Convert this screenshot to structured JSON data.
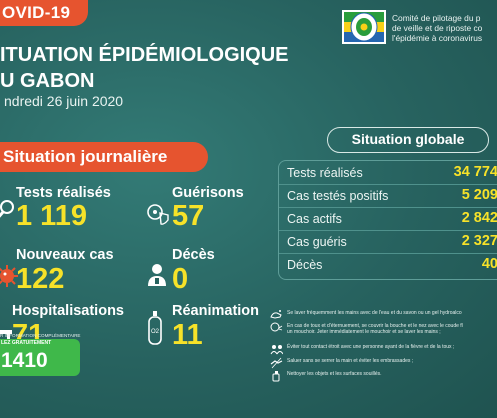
{
  "badge": "OVID-19",
  "title": {
    "line1": "ITUATION ÉPIDÉMIOLOGIQUE",
    "line2": "U GABON",
    "date": "ndredi 26 juin 2020"
  },
  "comite": {
    "line1": "Comité de pilotage du p",
    "line2": "de veille et de riposte co",
    "line3": "l'épidémie à coronavirus"
  },
  "daily": {
    "header": "Situation journalière",
    "stats": [
      {
        "label": "Tests réalisés",
        "value": "1 119",
        "icon": "magnifier-icon"
      },
      {
        "label": "Guérisons",
        "value": "57",
        "icon": "virus-shield-icon"
      },
      {
        "label": "Nouveaux cas",
        "value": "122",
        "icon": "virus-icon"
      },
      {
        "label": "Décès",
        "value": "0",
        "icon": "person-icon"
      },
      {
        "label": "Hospitalisations",
        "value": "71",
        "icon": "hospital-bed-icon"
      },
      {
        "label": "Réanimation",
        "value": "11",
        "icon": "oxygen-tank-icon"
      }
    ]
  },
  "global": {
    "header": "Situation globale",
    "rows": [
      {
        "label": "Tests réalisés",
        "value": "34 774"
      },
      {
        "label": "Cas testés positifs",
        "value": "5 209"
      },
      {
        "label": "Cas actifs",
        "value": "2 842"
      },
      {
        "label": "Cas guéris",
        "value": "2 327"
      },
      {
        "label": "Décès",
        "value": "40"
      }
    ]
  },
  "hotline": {
    "info": "R INFORMATION COMPLÉMENTAIRE",
    "free": "LEZ GRATUITEMENT",
    "number": "1410"
  },
  "advice": [
    {
      "icon": "hand-wash-icon",
      "lines": [
        "Se laver fréquemment les mains avec de l'eau et du savon ou un gel hydroalco"
      ]
    },
    {
      "icon": "cough-icon",
      "lines": [
        "En cas de toux et d'éternuement, se couvrir la bouche et le nez avec le coude fl",
        "un mouchoir. Jeter immédiatement le mouchoir et se laver les mains ;"
      ]
    },
    {
      "icon": "no-contact-icon",
      "lines": [
        "Éviter tout contact étroit avec une personne ayant de la fièvre et de la toux ;"
      ]
    },
    {
      "icon": "no-handshake-icon",
      "lines": [
        "Saluer sans se serrer la main et éviter les embrassades ;"
      ]
    },
    {
      "icon": "cleaning-icon",
      "lines": [
        "Nettoyer les objets et les surfaces souillés."
      ]
    }
  ],
  "colors": {
    "accent": "#e6542f",
    "value": "#f7e229",
    "bg": "#2a6e6a",
    "hotline": "#3fb84a"
  }
}
